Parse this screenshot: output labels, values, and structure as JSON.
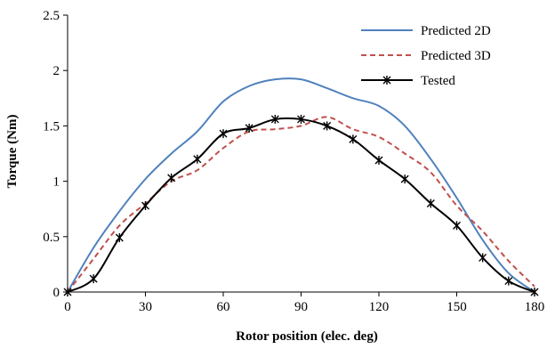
{
  "chart_data": {
    "type": "line",
    "xlabel": "Rotor position (elec. deg)",
    "ylabel": "Torque (Nm)",
    "xlim": [
      0,
      180
    ],
    "ylim": [
      0,
      2.5
    ],
    "x_ticks": [
      "0",
      "30",
      "60",
      "90",
      "120",
      "150",
      "180"
    ],
    "y_ticks": [
      "0",
      "0.5",
      "1",
      "1.5",
      "2",
      "2.5"
    ],
    "grid": false,
    "legend_position": "top-right",
    "series": [
      {
        "name": "Predicted 2D",
        "color": "#4f81bd",
        "style": "solid",
        "marker": "none",
        "x": [
          0,
          10,
          20,
          30,
          40,
          50,
          60,
          70,
          80,
          90,
          100,
          110,
          120,
          130,
          140,
          150,
          160,
          170,
          180
        ],
        "y": [
          0,
          0.4,
          0.73,
          1.02,
          1.25,
          1.45,
          1.72,
          1.86,
          1.92,
          1.92,
          1.84,
          1.75,
          1.68,
          1.5,
          1.2,
          0.85,
          0.47,
          0.17,
          0
        ]
      },
      {
        "name": "Predicted 3D",
        "color": "#c0504d",
        "style": "dashed",
        "marker": "none",
        "x": [
          0,
          10,
          20,
          30,
          40,
          50,
          60,
          70,
          80,
          90,
          100,
          110,
          120,
          130,
          140,
          150,
          160,
          170,
          180
        ],
        "y": [
          0,
          0.3,
          0.6,
          0.8,
          1.0,
          1.1,
          1.3,
          1.45,
          1.47,
          1.5,
          1.58,
          1.47,
          1.4,
          1.25,
          1.08,
          0.78,
          0.55,
          0.28,
          0.05
        ]
      },
      {
        "name": "Tested",
        "color": "#000000",
        "style": "solid",
        "marker": "asterisk",
        "x": [
          0,
          10,
          20,
          30,
          40,
          50,
          60,
          70,
          80,
          90,
          100,
          110,
          120,
          130,
          140,
          150,
          160,
          170,
          180
        ],
        "y": [
          0,
          0.12,
          0.49,
          0.78,
          1.03,
          1.2,
          1.43,
          1.48,
          1.56,
          1.56,
          1.5,
          1.38,
          1.19,
          1.02,
          0.8,
          0.6,
          0.31,
          0.1,
          0
        ]
      }
    ]
  }
}
